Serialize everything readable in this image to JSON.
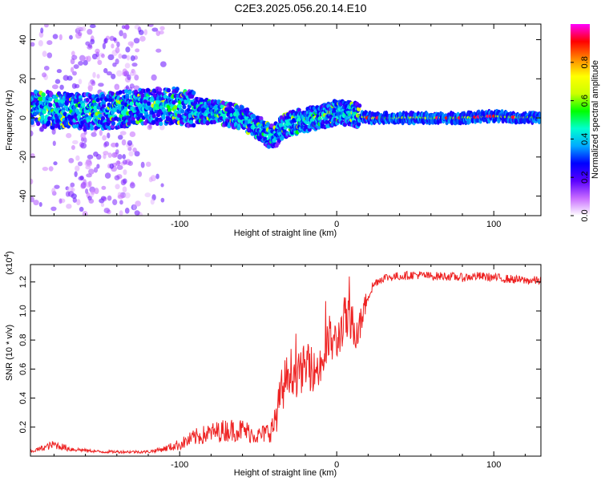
{
  "title": "C2E3.2025.056.20.14.E10",
  "chart_data": [
    {
      "type": "heatmap",
      "xlabel": "Height of straight line (km)",
      "ylabel": "Frequency (Hz)",
      "xlim": [
        -195,
        130
      ],
      "ylim": [
        -50,
        48
      ],
      "xticks": [
        -100,
        0,
        100
      ],
      "yticks": [
        -40,
        -20,
        0,
        20,
        40
      ],
      "grid": false,
      "colorbar": {
        "label": "Normalized spectral amplitude",
        "range": [
          0.0,
          1.0
        ],
        "ticks": [
          0.0,
          0.2,
          0.4,
          0.6,
          0.8
        ],
        "colors": [
          "#ffffff",
          "#c86cff",
          "#5a00ff",
          "#0000ff",
          "#00aaff",
          "#00ffd0",
          "#00ff00",
          "#ccff00",
          "#ffff00",
          "#ff8800",
          "#ff0000",
          "#ff00ff"
        ]
      },
      "ridge_frequency": {
        "x": [
          -195,
          -180,
          -160,
          -140,
          -120,
          -100,
          -90,
          -80,
          -70,
          -60,
          -50,
          -45,
          -40,
          -35,
          -30,
          -20,
          -10,
          0,
          10,
          20,
          40,
          60,
          80,
          100,
          120,
          130
        ],
        "y": [
          5,
          4,
          3,
          4,
          6,
          6,
          4,
          3,
          2,
          0,
          -5,
          -8,
          -10,
          -5,
          -3,
          -1,
          0,
          3,
          2,
          0,
          0,
          0,
          0,
          1,
          0,
          0
        ]
      }
    },
    {
      "type": "line",
      "xlabel": "Height of straight line (km)",
      "ylabel": "SNR (10 * v/v)",
      "scale_label": "(x10",
      "scale_exponent": "4",
      "xlim": [
        -195,
        130
      ],
      "ylim": [
        0.0,
        1.32
      ],
      "xticks": [
        -100,
        0,
        100
      ],
      "yticks": [
        0.2,
        0.4,
        0.6,
        0.8,
        1.0,
        1.2
      ],
      "ytick_labels": [
        "0.2",
        "0.4",
        "0.6",
        "0.8",
        "1.0",
        "1.2"
      ],
      "grid": false,
      "series": [
        {
          "color": "#ee2222",
          "x": [
            -195,
            -180,
            -170,
            -160,
            -150,
            -140,
            -130,
            -120,
            -110,
            -100,
            -90,
            -80,
            -70,
            -60,
            -50,
            -45,
            -40,
            -35,
            -30,
            -25,
            -20,
            -15,
            -10,
            -5,
            0,
            5,
            10,
            15,
            20,
            25,
            30,
            40,
            50,
            60,
            70,
            80,
            90,
            100,
            110,
            120,
            130
          ],
          "y": [
            0.03,
            0.08,
            0.05,
            0.04,
            0.03,
            0.03,
            0.03,
            0.03,
            0.05,
            0.08,
            0.13,
            0.16,
            0.18,
            0.18,
            0.14,
            0.16,
            0.2,
            0.45,
            0.6,
            0.55,
            0.62,
            0.58,
            0.62,
            0.8,
            0.78,
            0.95,
            0.88,
            0.9,
            1.12,
            1.2,
            1.23,
            1.24,
            1.25,
            1.24,
            1.24,
            1.23,
            1.24,
            1.23,
            1.22,
            1.21,
            1.21
          ],
          "noise": [
            0.01,
            0.03,
            0.02,
            0.01,
            0.01,
            0.01,
            0.01,
            0.01,
            0.02,
            0.04,
            0.06,
            0.07,
            0.08,
            0.08,
            0.06,
            0.07,
            0.1,
            0.16,
            0.16,
            0.15,
            0.16,
            0.14,
            0.16,
            0.18,
            0.14,
            0.16,
            0.18,
            0.12,
            0.06,
            0.03,
            0.03,
            0.03,
            0.03,
            0.03,
            0.03,
            0.03,
            0.03,
            0.03,
            0.03,
            0.03,
            0.03
          ]
        }
      ]
    }
  ]
}
